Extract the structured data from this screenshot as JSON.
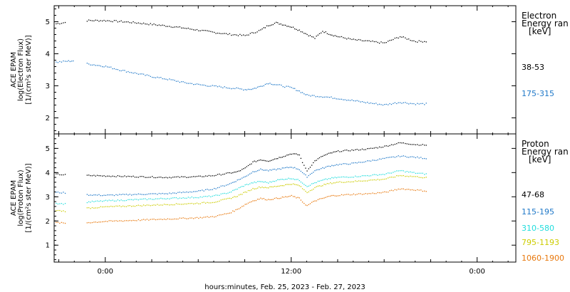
{
  "chart_data": [
    {
      "type": "scatter",
      "panel": "electron",
      "ylabel_lines": [
        "ACE EPAM",
        "log(Electron Flux)",
        "[1/(cm²s ster MeV)]"
      ],
      "ylim": [
        1.5,
        5.5
      ],
      "yticks": [
        2,
        3,
        4,
        5
      ],
      "legend_heading": [
        "Electron",
        "Energy ran",
        "[keV]"
      ],
      "series": [
        {
          "name": "38-53",
          "color": "#000000",
          "points": [
            [
              -3.2,
              4.95
            ],
            [
              -2.5,
              5.0
            ],
            [
              -1.5,
              5.03
            ],
            [
              -1.2,
              5.05
            ],
            [
              0,
              5.05
            ],
            [
              1,
              5.02
            ],
            [
              2,
              4.98
            ],
            [
              3,
              4.93
            ],
            [
              4,
              4.88
            ],
            [
              5,
              4.82
            ],
            [
              6,
              4.75
            ],
            [
              7,
              4.68
            ],
            [
              8,
              4.62
            ],
            [
              9,
              4.58
            ],
            [
              10,
              4.75
            ],
            [
              10.5,
              4.9
            ],
            [
              11,
              4.98
            ],
            [
              11.5,
              4.92
            ],
            [
              12,
              4.85
            ],
            [
              12.5,
              4.75
            ],
            [
              13,
              4.62
            ],
            [
              13.5,
              4.5
            ],
            [
              14,
              4.72
            ],
            [
              14.5,
              4.62
            ],
            [
              15,
              4.55
            ],
            [
              16,
              4.45
            ],
            [
              17,
              4.4
            ],
            [
              18,
              4.35
            ],
            [
              19,
              4.55
            ],
            [
              20,
              4.4
            ],
            [
              20.8,
              4.4
            ]
          ]
        },
        {
          "name": "175-315",
          "color": "#1f78c8",
          "points": [
            [
              -3.2,
              3.75
            ],
            [
              -2.5,
              3.78
            ],
            [
              -2,
              3.8
            ],
            [
              -1.2,
              3.7
            ],
            [
              0,
              3.62
            ],
            [
              1,
              3.5
            ],
            [
              2,
              3.4
            ],
            [
              3,
              3.3
            ],
            [
              4,
              3.22
            ],
            [
              5,
              3.12
            ],
            [
              6,
              3.05
            ],
            [
              7,
              3.0
            ],
            [
              8,
              2.95
            ],
            [
              9,
              2.9
            ],
            [
              9.5,
              2.92
            ],
            [
              10,
              3.0
            ],
            [
              10.5,
              3.1
            ],
            [
              11,
              3.05
            ],
            [
              12,
              2.95
            ],
            [
              12.5,
              2.85
            ],
            [
              13,
              2.72
            ],
            [
              14,
              2.68
            ],
            [
              15,
              2.62
            ],
            [
              16,
              2.55
            ],
            [
              17,
              2.48
            ],
            [
              18,
              2.42
            ],
            [
              19,
              2.5
            ],
            [
              20,
              2.45
            ],
            [
              20.8,
              2.45
            ]
          ]
        }
      ]
    },
    {
      "type": "scatter",
      "panel": "proton",
      "ylabel_lines": [
        "ACE EPAM",
        "log(Proton Flux)",
        "[1/(cm²s ster MeV)]"
      ],
      "ylim": [
        0.3,
        5.6
      ],
      "yticks": [
        1,
        2,
        3,
        4,
        5
      ],
      "legend_heading": [
        "Proton",
        "Energy ran",
        "[keV]"
      ],
      "series": [
        {
          "name": "47-68",
          "color": "#000000",
          "points": [
            [
              -3.2,
              3.95
            ],
            [
              -2.5,
              3.92
            ],
            [
              -1.2,
              3.9
            ],
            [
              0,
              3.88
            ],
            [
              2,
              3.85
            ],
            [
              4,
              3.82
            ],
            [
              6,
              3.85
            ],
            [
              7,
              3.9
            ],
            [
              8,
              4.0
            ],
            [
              8.5,
              4.05
            ],
            [
              9,
              4.2
            ],
            [
              9.5,
              4.45
            ],
            [
              10,
              4.55
            ],
            [
              10.5,
              4.5
            ],
            [
              11,
              4.6
            ],
            [
              11.5,
              4.7
            ],
            [
              12,
              4.8
            ],
            [
              12.5,
              4.75
            ],
            [
              12.8,
              4.3
            ],
            [
              13,
              4.1
            ],
            [
              13.5,
              4.5
            ],
            [
              14,
              4.7
            ],
            [
              14.5,
              4.82
            ],
            [
              15,
              4.9
            ],
            [
              16,
              4.95
            ],
            [
              17,
              5.0
            ],
            [
              18,
              5.1
            ],
            [
              19,
              5.25
            ],
            [
              20,
              5.18
            ],
            [
              20.8,
              5.15
            ]
          ]
        },
        {
          "name": "115-195",
          "color": "#1f78c8",
          "points": [
            [
              -3.2,
              3.2
            ],
            [
              -2.5,
              3.18
            ],
            [
              -1.2,
              3.1
            ],
            [
              0,
              3.08
            ],
            [
              2,
              3.12
            ],
            [
              4,
              3.15
            ],
            [
              6,
              3.25
            ],
            [
              7,
              3.35
            ],
            [
              8,
              3.55
            ],
            [
              8.5,
              3.7
            ],
            [
              9,
              3.85
            ],
            [
              9.5,
              4.05
            ],
            [
              10,
              4.15
            ],
            [
              10.5,
              4.1
            ],
            [
              11,
              4.15
            ],
            [
              11.5,
              4.2
            ],
            [
              12,
              4.25
            ],
            [
              12.5,
              4.15
            ],
            [
              12.8,
              3.95
            ],
            [
              13,
              3.85
            ],
            [
              13.5,
              4.1
            ],
            [
              14,
              4.2
            ],
            [
              14.5,
              4.3
            ],
            [
              15,
              4.35
            ],
            [
              16,
              4.4
            ],
            [
              17,
              4.5
            ],
            [
              18,
              4.6
            ],
            [
              19,
              4.7
            ],
            [
              20,
              4.65
            ],
            [
              20.8,
              4.6
            ]
          ]
        },
        {
          "name": "310-580",
          "color": "#22dddd",
          "points": [
            [
              -3.2,
              2.75
            ],
            [
              -2.5,
              2.72
            ],
            [
              -1.2,
              2.8
            ],
            [
              0,
              2.85
            ],
            [
              2,
              2.9
            ],
            [
              4,
              2.95
            ],
            [
              6,
              3.0
            ],
            [
              7,
              3.05
            ],
            [
              8,
              3.2
            ],
            [
              8.5,
              3.35
            ],
            [
              9,
              3.5
            ],
            [
              9.5,
              3.6
            ],
            [
              10,
              3.65
            ],
            [
              10.5,
              3.6
            ],
            [
              11,
              3.7
            ],
            [
              11.5,
              3.75
            ],
            [
              12,
              3.78
            ],
            [
              12.5,
              3.7
            ],
            [
              12.8,
              3.55
            ],
            [
              13,
              3.45
            ],
            [
              13.5,
              3.6
            ],
            [
              14,
              3.7
            ],
            [
              14.5,
              3.78
            ],
            [
              15,
              3.82
            ],
            [
              16,
              3.85
            ],
            [
              17,
              3.9
            ],
            [
              18,
              3.95
            ],
            [
              19,
              4.1
            ],
            [
              20,
              4.0
            ],
            [
              20.8,
              3.95
            ]
          ]
        },
        {
          "name": "795-1193",
          "color": "#cccc00",
          "points": [
            [
              -3.2,
              2.45
            ],
            [
              -2.5,
              2.42
            ],
            [
              -1.2,
              2.55
            ],
            [
              0,
              2.6
            ],
            [
              2,
              2.65
            ],
            [
              4,
              2.7
            ],
            [
              6,
              2.75
            ],
            [
              7,
              2.8
            ],
            [
              8,
              2.95
            ],
            [
              8.5,
              3.05
            ],
            [
              9,
              3.2
            ],
            [
              9.5,
              3.35
            ],
            [
              10,
              3.42
            ],
            [
              10.5,
              3.4
            ],
            [
              11,
              3.45
            ],
            [
              11.5,
              3.5
            ],
            [
              12,
              3.55
            ],
            [
              12.5,
              3.48
            ],
            [
              12.8,
              3.3
            ],
            [
              13,
              3.2
            ],
            [
              13.5,
              3.4
            ],
            [
              14,
              3.5
            ],
            [
              14.5,
              3.58
            ],
            [
              15,
              3.62
            ],
            [
              16,
              3.65
            ],
            [
              17,
              3.7
            ],
            [
              18,
              3.75
            ],
            [
              19,
              3.9
            ],
            [
              20,
              3.85
            ],
            [
              20.8,
              3.8
            ]
          ]
        },
        {
          "name": "1060-1900",
          "color": "#e8780c",
          "points": [
            [
              -3.2,
              1.95
            ],
            [
              -2.5,
              1.92
            ],
            [
              -1.2,
              1.95
            ],
            [
              0,
              2.0
            ],
            [
              2,
              2.05
            ],
            [
              4,
              2.1
            ],
            [
              6,
              2.15
            ],
            [
              7,
              2.2
            ],
            [
              8,
              2.35
            ],
            [
              8.5,
              2.5
            ],
            [
              9,
              2.7
            ],
            [
              9.5,
              2.85
            ],
            [
              10,
              2.95
            ],
            [
              10.5,
              2.9
            ],
            [
              11,
              2.95
            ],
            [
              11.5,
              3.0
            ],
            [
              12,
              3.05
            ],
            [
              12.5,
              2.95
            ],
            [
              12.8,
              2.75
            ],
            [
              13,
              2.65
            ],
            [
              13.5,
              2.85
            ],
            [
              14,
              2.95
            ],
            [
              14.5,
              3.05
            ],
            [
              15,
              3.08
            ],
            [
              16,
              3.12
            ],
            [
              17,
              3.15
            ],
            [
              18,
              3.2
            ],
            [
              19,
              3.35
            ],
            [
              20,
              3.3
            ],
            [
              20.8,
              3.25
            ]
          ]
        }
      ]
    }
  ],
  "x_axis": {
    "range_hours": [
      -3.3,
      26.5
    ],
    "tick_positions_hours": [
      0,
      12,
      24
    ],
    "tick_labels": [
      "0:00",
      "12:00",
      "0:00"
    ],
    "label": "hours:minutes, Feb. 25, 2023 - Feb. 27, 2023"
  }
}
